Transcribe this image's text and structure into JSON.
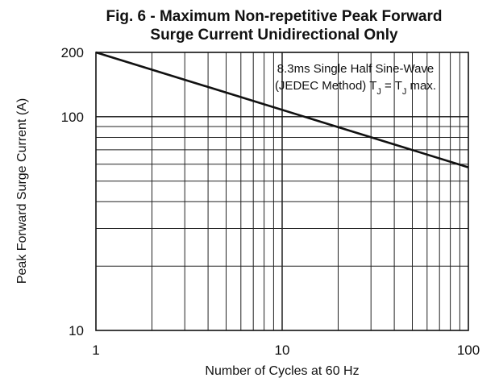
{
  "chart_data": {
    "type": "line",
    "title_line1": "Fig. 6 - Maximum Non-repetitive Peak Forward",
    "title_line2": "Surge Current Unidirectional Only",
    "xlabel": "Number of Cycles at 60 Hz",
    "ylabel": "Peak Forward Surge Current (A)",
    "x_scale": "log",
    "y_scale": "log",
    "xlim": [
      1,
      100
    ],
    "ylim": [
      10,
      200
    ],
    "x_ticks": [
      1,
      10,
      100
    ],
    "x_tick_labels": [
      "1",
      "10",
      "100"
    ],
    "y_ticks": [
      10,
      100,
      200
    ],
    "y_tick_labels": [
      "10",
      "100",
      "200"
    ],
    "grid": true,
    "annotation_line1": "8.3ms Single Half Sine-Wave",
    "annotation_line2_prefix": "(JEDEC Method) T",
    "annotation_sub": "J",
    "annotation_eq": " = T",
    "annotation_suffix": " max.",
    "series": [
      {
        "x": [
          1,
          100
        ],
        "y": [
          200,
          58
        ]
      }
    ]
  }
}
